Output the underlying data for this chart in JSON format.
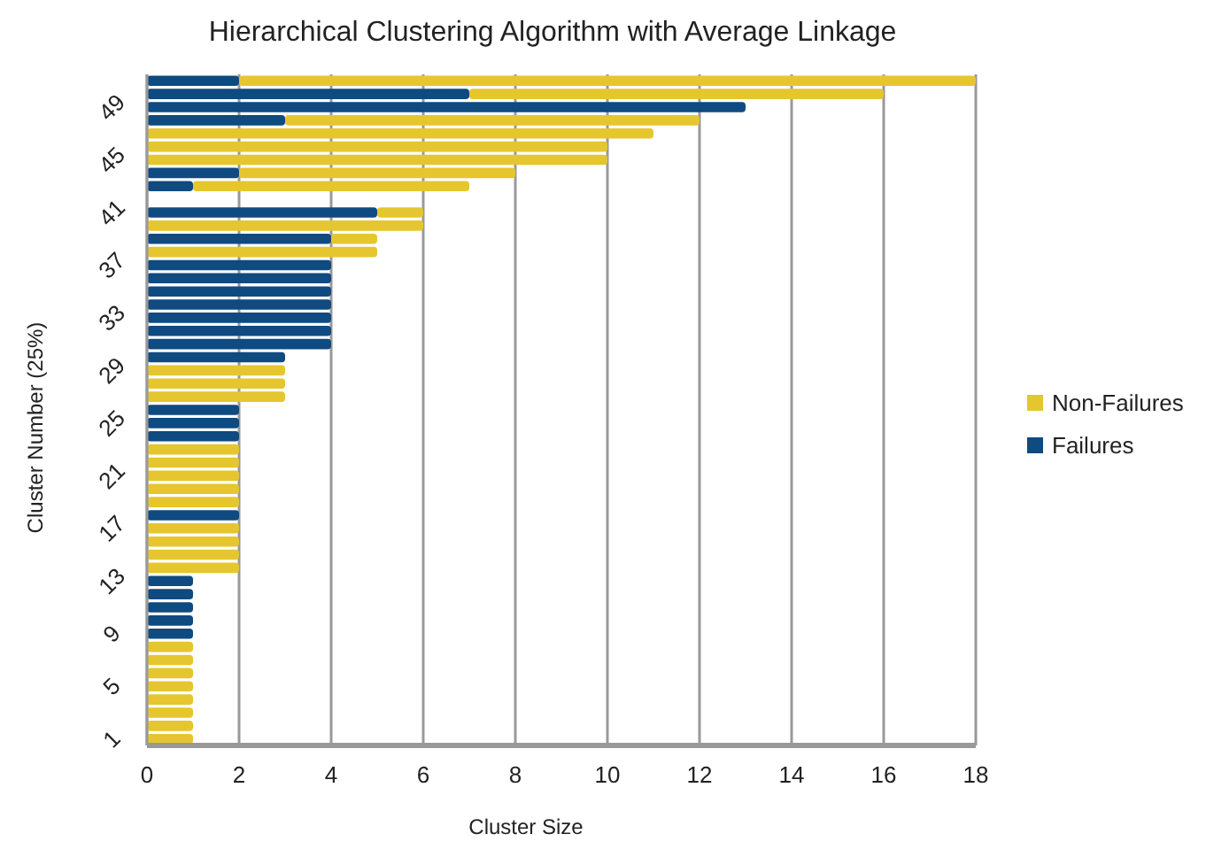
{
  "chart_data": {
    "type": "bar",
    "orientation": "horizontal",
    "stacked": true,
    "title": "Hierarchical Clustering Algorithm with Average Linkage",
    "xlabel": "Cluster Size",
    "ylabel": "Cluster Number (25%)",
    "categories": [
      null,
      null,
      "49",
      null,
      null,
      null,
      "45",
      null,
      null,
      null,
      "41",
      null,
      null,
      null,
      "37",
      null,
      null,
      null,
      "33",
      null,
      null,
      null,
      "29",
      null,
      null,
      null,
      "25",
      null,
      null,
      null,
      "21",
      null,
      null,
      null,
      "17",
      null,
      null,
      null,
      "13",
      null,
      null,
      null,
      "9",
      null,
      null,
      null,
      "5",
      null,
      null,
      null,
      "1"
    ],
    "series": [
      {
        "name": "Failures",
        "color": "#0f4a80",
        "values": [
          2,
          7,
          13,
          3,
          0,
          0,
          0,
          2,
          1,
          0,
          5,
          0,
          4,
          0,
          4,
          4,
          4,
          4,
          4,
          4,
          4,
          3,
          0,
          0,
          0,
          2,
          2,
          2,
          0,
          0,
          0,
          0,
          0,
          2,
          0,
          0,
          0,
          0,
          1,
          1,
          1,
          1,
          1,
          0,
          0,
          0,
          0,
          0,
          0,
          0,
          0
        ]
      },
      {
        "name": "Non-Failures",
        "color": "#e6c62e",
        "values": [
          16,
          9,
          0,
          9,
          11,
          10,
          10,
          6,
          6,
          0,
          1,
          6,
          1,
          5,
          0,
          0,
          0,
          0,
          0,
          0,
          0,
          0,
          3,
          3,
          3,
          0,
          0,
          0,
          2,
          2,
          2,
          2,
          2,
          0,
          2,
          2,
          2,
          2,
          0,
          0,
          0,
          0,
          0,
          1,
          1,
          1,
          1,
          1,
          1,
          1,
          1
        ]
      }
    ],
    "xlim": [
      0,
      18
    ],
    "xticks": [
      0,
      2,
      4,
      6,
      8,
      10,
      12,
      14,
      16,
      18
    ],
    "grid": "x",
    "legend": "right"
  }
}
